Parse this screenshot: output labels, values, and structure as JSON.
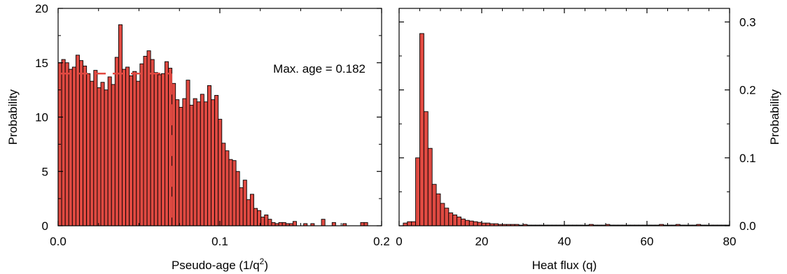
{
  "chart_data": [
    {
      "type": "bar",
      "panel": "left",
      "title": "",
      "xlabel": "Pseudo-age (1/q",
      "xlabel_sup": "2",
      "xlabel_end": ")",
      "ylabel": "Probability",
      "xlim": [
        0,
        0.2
      ],
      "ylim": [
        0,
        20
      ],
      "xticks": [
        0.0,
        0.1,
        0.2
      ],
      "xtick_labels": [
        "0.0",
        "0.1",
        "0.2"
      ],
      "yticks": [
        0,
        5,
        10,
        15,
        20
      ],
      "ytick_labels": [
        "0",
        "5",
        "10",
        "15",
        "20"
      ],
      "bin_width": 0.0022,
      "bins_start": 0,
      "values": [
        15.0,
        15.3,
        15.0,
        14.4,
        14.6,
        15.7,
        15.2,
        14.7,
        14.0,
        13.3,
        14.3,
        12.7,
        13.2,
        12.5,
        13.7,
        13.0,
        15.5,
        18.5,
        14.4,
        14.6,
        13.8,
        14.2,
        13.3,
        14.9,
        15.6,
        16.1,
        15.3,
        14.1,
        13.9,
        14.0,
        15.1,
        14.5,
        13.1,
        11.6,
        10.9,
        11.7,
        13.4,
        11.1,
        11.7,
        11.4,
        12.1,
        11.4,
        12.9,
        11.6,
        12.0,
        9.8,
        7.6,
        6.9,
        6.1,
        6.0,
        5.0,
        3.5,
        4.2,
        2.4,
        2.9,
        1.6,
        1.4,
        0.8,
        1.0,
        0.6,
        0.3,
        0.2,
        0.3,
        0.3,
        0.2,
        0.2,
        0.4,
        0,
        0,
        0.2,
        0,
        0.2,
        0,
        0,
        0.6,
        0,
        0,
        0.3,
        0,
        0,
        0.2,
        0,
        0,
        0,
        0,
        0.3,
        0.3,
        0,
        0,
        0,
        0,
        0.6,
        0,
        0,
        0,
        0,
        0.3,
        0,
        0,
        0,
        0,
        0,
        0,
        0,
        0,
        0,
        0,
        0,
        0,
        0,
        0,
        0,
        0,
        0.3,
        0,
        0,
        0,
        0,
        0,
        0,
        0,
        0,
        0,
        0,
        0,
        0,
        0,
        0,
        0,
        0,
        0,
        0,
        0,
        0,
        0,
        0,
        0,
        0,
        0,
        0,
        0,
        0,
        0.3,
        0,
        0,
        0,
        0,
        0,
        0,
        0,
        0,
        0,
        0,
        0,
        0,
        0,
        0,
        0,
        0,
        0,
        0,
        0,
        0,
        0,
        0,
        0,
        0,
        0,
        0,
        0,
        0,
        0,
        0,
        0,
        0,
        0,
        0,
        0,
        0,
        0,
        0,
        0,
        0,
        0,
        0,
        0,
        0.6,
        0.3,
        0,
        0,
        0.3
      ],
      "reference_line": {
        "y": 14.0,
        "x_end": 0.07
      },
      "annotation": "Max. age = 0.182",
      "bar_color": "#e04a42",
      "edge_color": "#000000",
      "dash_color": "#e04a42"
    },
    {
      "type": "bar",
      "panel": "right",
      "title": "",
      "xlabel": "Heat flux (q)",
      "ylabel": "Probability",
      "xlim": [
        0,
        80
      ],
      "ylim": [
        0,
        0.32
      ],
      "xticks": [
        0,
        20,
        40,
        60,
        80
      ],
      "xtick_labels": [
        "0",
        "20",
        "40",
        "60",
        "80"
      ],
      "yticks": [
        0.0,
        0.1,
        0.2,
        0.3
      ],
      "ytick_labels": [
        "0.0",
        "0.1",
        "0.2",
        "0.3"
      ],
      "bin_width": 1,
      "bins_start": 1,
      "values": [
        0.004,
        0.006,
        0.006,
        0.1,
        0.283,
        0.168,
        0.114,
        0.061,
        0.047,
        0.033,
        0.026,
        0.019,
        0.016,
        0.013,
        0.01,
        0.008,
        0.007,
        0.006,
        0.005,
        0.004,
        0.004,
        0.003,
        0.003,
        0.002,
        0.002,
        0.002,
        0.002,
        0.002,
        0.001,
        0.002,
        0.001,
        0.001,
        0.001,
        0.001,
        0.001,
        0.001,
        0.001,
        0.001,
        0.001,
        0.001,
        0.001,
        0.001,
        0.001,
        0.001,
        0.001,
        0.002,
        0.001,
        0.001,
        0.001,
        0.002,
        0.001,
        0.001,
        0.001,
        0.001,
        0.001,
        0.001,
        0.001,
        0.001,
        0.001,
        0.001,
        0.001,
        0.001,
        0.002,
        0.001,
        0.001,
        0.001,
        0.002,
        0.001,
        0.001,
        0.001,
        0.001,
        0.002,
        0.001,
        0.001,
        0.001,
        0.001,
        0.001,
        0.001,
        0.001
      ],
      "bar_color": "#e04a42",
      "edge_color": "#000000"
    }
  ]
}
